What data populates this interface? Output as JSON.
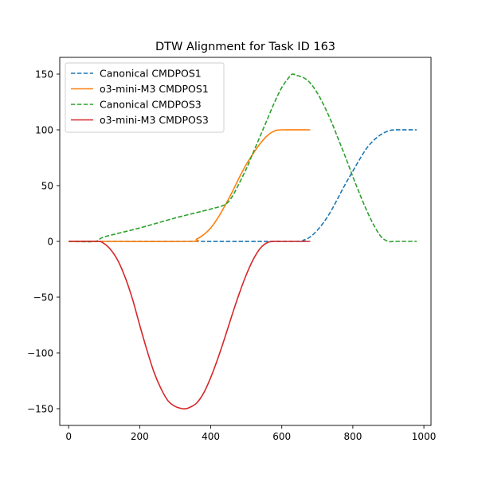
{
  "chart_data": {
    "type": "line",
    "title": "DTW Alignment for Task ID 163",
    "xlabel": "",
    "ylabel": "",
    "xlim": [
      -25,
      1020
    ],
    "ylim": [
      -165,
      165
    ],
    "x_ticks": [
      0,
      200,
      400,
      600,
      800,
      1000
    ],
    "y_ticks": [
      -150,
      -100,
      -50,
      0,
      50,
      100,
      150
    ],
    "x_tick_labels": [
      "0",
      "200",
      "400",
      "600",
      "800",
      "1000"
    ],
    "y_tick_labels": [
      "−150",
      "−100",
      "−50",
      "0",
      "50",
      "100",
      "150"
    ],
    "grid": false,
    "legend_position": "upper-left",
    "series": [
      {
        "name": "Canonical CMDPOS1",
        "color": "#1f77b4",
        "style": "dashed",
        "x": [
          0,
          80,
          340,
          640,
          660,
          680,
          700,
          720,
          740,
          760,
          780,
          800,
          820,
          840,
          860,
          880,
          900,
          920,
          980
        ],
        "y": [
          0,
          0,
          0,
          0,
          1,
          4,
          10,
          18,
          28,
          40,
          52,
          63,
          74,
          84,
          91,
          96,
          99,
          100,
          100
        ]
      },
      {
        "name": "o3-mini-M3 CMDPOS1",
        "color": "#ff7f0e",
        "style": "solid",
        "x": [
          0,
          80,
          340,
          360,
          380,
          400,
          420,
          440,
          460,
          480,
          500,
          520,
          540,
          560,
          580,
          600,
          680
        ],
        "y": [
          0,
          0,
          0,
          2,
          6,
          12,
          21,
          32,
          44,
          57,
          69,
          79,
          88,
          95,
          99,
          100,
          100
        ]
      },
      {
        "name": "Canonical CMDPOS3",
        "color": "#2ca02c",
        "style": "dashed",
        "x": [
          0,
          75,
          100,
          200,
          300,
          400,
          440,
          460,
          480,
          500,
          520,
          540,
          560,
          580,
          600,
          620,
          630,
          640,
          660,
          680,
          700,
          720,
          740,
          760,
          780,
          800,
          820,
          840,
          860,
          880,
          900,
          920,
          980
        ],
        "y": [
          0,
          0,
          4,
          12,
          21,
          29,
          33,
          40,
          52,
          65,
          80,
          95,
          110,
          125,
          138,
          147,
          150,
          149,
          147,
          142,
          133,
          121,
          107,
          91,
          75,
          58,
          42,
          27,
          14,
          4,
          0,
          0,
          0
        ]
      },
      {
        "name": "o3-mini-M3 CMDPOS3",
        "color": "#d62728",
        "style": "solid",
        "x": [
          0,
          80,
          100,
          120,
          140,
          160,
          180,
          200,
          220,
          240,
          260,
          280,
          300,
          320,
          330,
          340,
          360,
          380,
          400,
          420,
          440,
          460,
          480,
          500,
          520,
          540,
          560,
          580,
          600,
          620,
          680
        ],
        "y": [
          0,
          0,
          -2,
          -8,
          -18,
          -33,
          -52,
          -75,
          -97,
          -117,
          -132,
          -143,
          -148,
          -150,
          -150,
          -149,
          -145,
          -136,
          -122,
          -105,
          -86,
          -66,
          -47,
          -30,
          -16,
          -6,
          -1,
          0,
          0,
          0,
          0
        ]
      }
    ]
  }
}
